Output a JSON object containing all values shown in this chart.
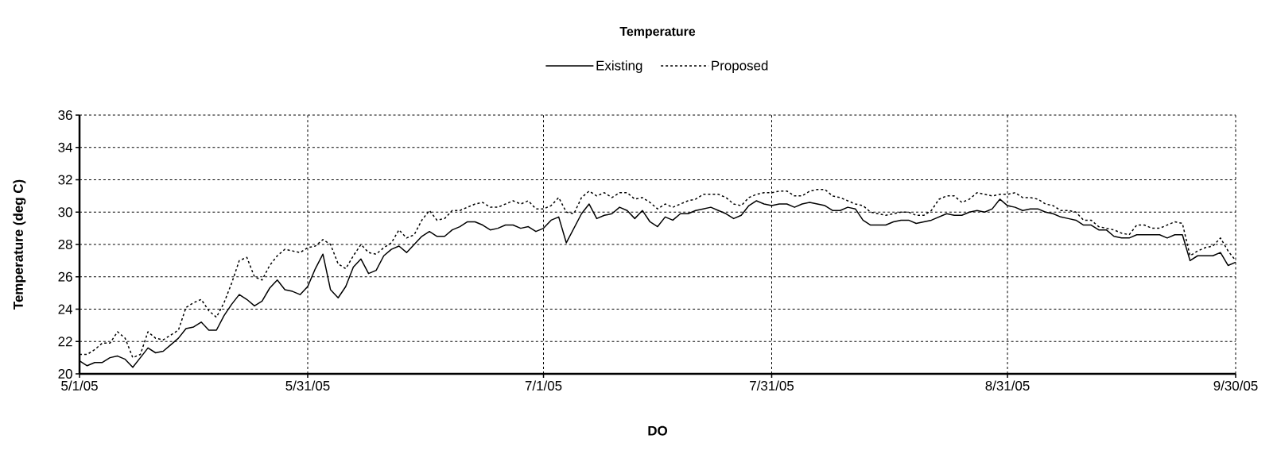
{
  "chart_data": {
    "type": "line",
    "title": "Temperature",
    "xlabel": "DO",
    "ylabel": "Temperature (deg C)",
    "legend": "top",
    "grid": true,
    "marker": "none",
    "xlim": [
      "2005-05-01",
      "2005-09-30"
    ],
    "xticks": [
      {
        "value": "2005-05-01",
        "label": "5/1/05"
      },
      {
        "value": "2005-05-31",
        "label": "5/31/05"
      },
      {
        "value": "2005-07-01",
        "label": "7/1/05"
      },
      {
        "value": "2005-07-31",
        "label": "7/31/05"
      },
      {
        "value": "2005-08-31",
        "label": "8/31/05"
      },
      {
        "value": "2005-09-30",
        "label": "9/30/05"
      }
    ],
    "ylim": [
      20,
      36
    ],
    "yticks": [
      20,
      22,
      24,
      26,
      28,
      30,
      32,
      34,
      36
    ],
    "x": [
      "2005-05-01",
      "2005-05-02",
      "2005-05-03",
      "2005-05-04",
      "2005-05-05",
      "2005-05-06",
      "2005-05-07",
      "2005-05-08",
      "2005-05-09",
      "2005-05-10",
      "2005-05-11",
      "2005-05-12",
      "2005-05-13",
      "2005-05-14",
      "2005-05-15",
      "2005-05-16",
      "2005-05-17",
      "2005-05-18",
      "2005-05-19",
      "2005-05-20",
      "2005-05-21",
      "2005-05-22",
      "2005-05-23",
      "2005-05-24",
      "2005-05-25",
      "2005-05-26",
      "2005-05-27",
      "2005-05-28",
      "2005-05-29",
      "2005-05-30",
      "2005-05-31",
      "2005-06-01",
      "2005-06-02",
      "2005-06-03",
      "2005-06-04",
      "2005-06-05",
      "2005-06-06",
      "2005-06-07",
      "2005-06-08",
      "2005-06-09",
      "2005-06-10",
      "2005-06-11",
      "2005-06-12",
      "2005-06-13",
      "2005-06-14",
      "2005-06-15",
      "2005-06-16",
      "2005-06-17",
      "2005-06-18",
      "2005-06-19",
      "2005-06-20",
      "2005-06-21",
      "2005-06-22",
      "2005-06-23",
      "2005-06-24",
      "2005-06-25",
      "2005-06-26",
      "2005-06-27",
      "2005-06-28",
      "2005-06-29",
      "2005-06-30",
      "2005-07-01",
      "2005-07-02",
      "2005-07-03",
      "2005-07-04",
      "2005-07-05",
      "2005-07-06",
      "2005-07-07",
      "2005-07-08",
      "2005-07-09",
      "2005-07-10",
      "2005-07-11",
      "2005-07-12",
      "2005-07-13",
      "2005-07-14",
      "2005-07-15",
      "2005-07-16",
      "2005-07-17",
      "2005-07-18",
      "2005-07-19",
      "2005-07-20",
      "2005-07-21",
      "2005-07-22",
      "2005-07-23",
      "2005-07-24",
      "2005-07-25",
      "2005-07-26",
      "2005-07-27",
      "2005-07-28",
      "2005-07-29",
      "2005-07-30",
      "2005-07-31",
      "2005-08-01",
      "2005-08-02",
      "2005-08-03",
      "2005-08-04",
      "2005-08-05",
      "2005-08-06",
      "2005-08-07",
      "2005-08-08",
      "2005-08-09",
      "2005-08-10",
      "2005-08-11",
      "2005-08-12",
      "2005-08-13",
      "2005-08-14",
      "2005-08-15",
      "2005-08-16",
      "2005-08-17",
      "2005-08-18",
      "2005-08-19",
      "2005-08-20",
      "2005-08-21",
      "2005-08-22",
      "2005-08-23",
      "2005-08-24",
      "2005-08-25",
      "2005-08-26",
      "2005-08-27",
      "2005-08-28",
      "2005-08-29",
      "2005-08-30",
      "2005-08-31",
      "2005-09-01",
      "2005-09-02",
      "2005-09-03",
      "2005-09-04",
      "2005-09-05",
      "2005-09-06",
      "2005-09-07",
      "2005-09-08",
      "2005-09-09",
      "2005-09-10",
      "2005-09-11",
      "2005-09-12",
      "2005-09-13",
      "2005-09-14",
      "2005-09-15",
      "2005-09-16",
      "2005-09-17",
      "2005-09-18",
      "2005-09-19",
      "2005-09-20",
      "2005-09-21",
      "2005-09-22",
      "2005-09-23",
      "2005-09-24",
      "2005-09-25",
      "2005-09-26",
      "2005-09-27",
      "2005-09-28",
      "2005-09-29",
      "2005-09-30"
    ],
    "series": [
      {
        "name": "Existing",
        "color": "#000000",
        "line_style": "solid",
        "values": [
          20.8,
          20.5,
          20.7,
          20.7,
          21.0,
          21.1,
          20.9,
          20.4,
          21.0,
          21.6,
          21.3,
          21.4,
          21.8,
          22.2,
          22.8,
          22.9,
          23.2,
          22.7,
          22.7,
          23.6,
          24.3,
          24.9,
          24.6,
          24.2,
          24.5,
          25.3,
          25.8,
          25.2,
          25.1,
          24.9,
          25.4,
          26.5,
          27.4,
          25.2,
          24.7,
          25.4,
          26.6,
          27.1,
          26.2,
          26.4,
          27.3,
          27.7,
          27.9,
          27.5,
          28.0,
          28.5,
          28.8,
          28.5,
          28.5,
          28.9,
          29.1,
          29.4,
          29.4,
          29.2,
          28.9,
          29.0,
          29.2,
          29.2,
          29.0,
          29.1,
          28.8,
          29.0,
          29.5,
          29.7,
          28.1,
          29.0,
          29.9,
          30.5,
          29.6,
          29.8,
          29.9,
          30.3,
          30.1,
          29.6,
          30.1,
          29.4,
          29.1,
          29.7,
          29.5,
          29.9,
          29.9,
          30.1,
          30.2,
          30.3,
          30.1,
          29.9,
          29.6,
          29.8,
          30.4,
          30.7,
          30.5,
          30.4,
          30.5,
          30.5,
          30.3,
          30.5,
          30.6,
          30.5,
          30.4,
          30.1,
          30.1,
          30.3,
          30.2,
          29.5,
          29.2,
          29.2,
          29.2,
          29.4,
          29.5,
          29.5,
          29.3,
          29.4,
          29.5,
          29.7,
          29.9,
          29.8,
          29.8,
          30.0,
          30.1,
          30.0,
          30.2,
          30.8,
          30.4,
          30.3,
          30.1,
          30.2,
          30.2,
          30.0,
          29.9,
          29.7,
          29.6,
          29.5,
          29.2,
          29.2,
          28.9,
          28.9,
          28.5,
          28.4,
          28.4,
          28.6,
          28.6,
          28.6,
          28.6,
          28.4,
          28.6,
          28.6,
          27.0,
          27.3,
          27.3,
          27.3,
          27.5,
          26.7,
          26.9
        ]
      },
      {
        "name": "Proposed",
        "color": "#000000",
        "line_style": "dashed",
        "values": [
          21.2,
          21.2,
          21.5,
          21.9,
          21.9,
          22.6,
          22.2,
          21.0,
          21.2,
          22.6,
          22.2,
          22.1,
          22.4,
          22.7,
          24.1,
          24.4,
          24.6,
          23.9,
          23.5,
          24.4,
          25.6,
          27.0,
          27.2,
          26.0,
          25.8,
          26.7,
          27.3,
          27.7,
          27.6,
          27.5,
          27.8,
          27.9,
          28.3,
          28.0,
          26.8,
          26.5,
          27.3,
          28.0,
          27.5,
          27.4,
          27.8,
          28.1,
          28.9,
          28.4,
          28.6,
          29.5,
          30.1,
          29.5,
          29.6,
          30.1,
          30.1,
          30.3,
          30.5,
          30.6,
          30.3,
          30.3,
          30.5,
          30.7,
          30.5,
          30.7,
          30.2,
          30.2,
          30.4,
          30.9,
          30.0,
          29.9,
          30.9,
          31.3,
          31.0,
          31.2,
          30.9,
          31.2,
          31.2,
          30.8,
          30.9,
          30.6,
          30.2,
          30.5,
          30.3,
          30.5,
          30.7,
          30.8,
          31.1,
          31.1,
          31.1,
          30.9,
          30.5,
          30.4,
          30.9,
          31.1,
          31.2,
          31.2,
          31.3,
          31.3,
          31.0,
          31.0,
          31.3,
          31.4,
          31.4,
          31.0,
          30.9,
          30.7,
          30.5,
          30.4,
          30.0,
          29.9,
          29.8,
          29.9,
          30.0,
          30.0,
          29.8,
          29.8,
          30.1,
          30.8,
          31.0,
          31.0,
          30.6,
          30.8,
          31.2,
          31.1,
          31.0,
          31.1,
          31.1,
          31.2,
          30.9,
          30.9,
          30.8,
          30.5,
          30.4,
          30.1,
          30.1,
          30.0,
          29.5,
          29.5,
          29.1,
          29.0,
          28.9,
          28.7,
          28.6,
          29.2,
          29.2,
          29.0,
          29.0,
          29.2,
          29.4,
          29.3,
          27.3,
          27.6,
          27.8,
          27.9,
          28.4,
          27.6,
          27.0
        ]
      }
    ]
  }
}
